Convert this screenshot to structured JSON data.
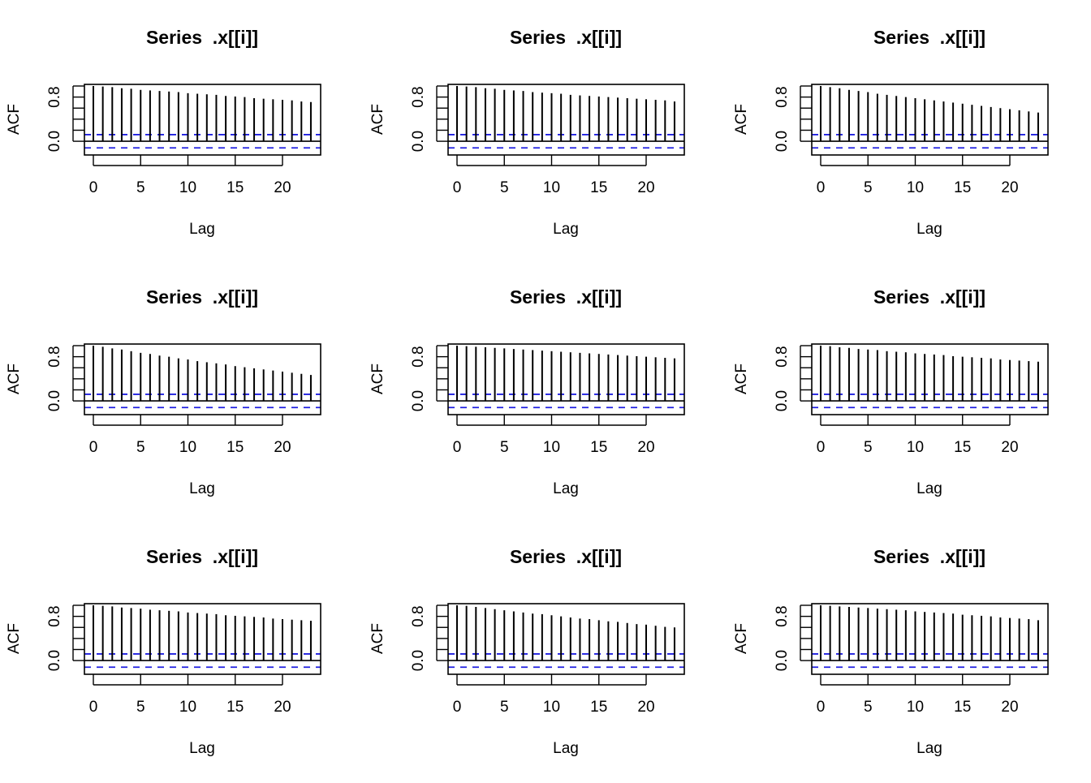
{
  "chart_data": [
    {
      "type": "bar",
      "title": "Series  .x[[i]]",
      "xlabel": "Lag",
      "ylabel": "ACF",
      "x": [
        0,
        1,
        2,
        3,
        4,
        5,
        6,
        7,
        8,
        9,
        10,
        11,
        12,
        13,
        14,
        15,
        16,
        17,
        18,
        19,
        20,
        21,
        22,
        23
      ],
      "values": [
        1.0,
        0.99,
        0.98,
        0.96,
        0.95,
        0.93,
        0.92,
        0.91,
        0.9,
        0.89,
        0.87,
        0.86,
        0.85,
        0.84,
        0.82,
        0.81,
        0.8,
        0.78,
        0.77,
        0.76,
        0.75,
        0.74,
        0.72,
        0.71
      ],
      "conf_limit": 0.12,
      "ylim": [
        -0.16,
        1.0
      ],
      "x_ticks": [
        "0",
        "5",
        "10",
        "15",
        "20"
      ],
      "y_ticks": [
        "0.0",
        "0.8"
      ],
      "grid": false
    },
    {
      "type": "bar",
      "title": "Series  .x[[i]]",
      "xlabel": "Lag",
      "ylabel": "ACF",
      "x": [
        0,
        1,
        2,
        3,
        4,
        5,
        6,
        7,
        8,
        9,
        10,
        11,
        12,
        13,
        14,
        15,
        16,
        17,
        18,
        19,
        20,
        21,
        22,
        23
      ],
      "values": [
        1.0,
        0.99,
        0.98,
        0.96,
        0.95,
        0.93,
        0.92,
        0.91,
        0.89,
        0.88,
        0.87,
        0.86,
        0.84,
        0.83,
        0.82,
        0.81,
        0.8,
        0.79,
        0.78,
        0.77,
        0.76,
        0.75,
        0.74,
        0.72
      ],
      "conf_limit": 0.12,
      "ylim": [
        -0.16,
        1.0
      ],
      "x_ticks": [
        "0",
        "5",
        "10",
        "15",
        "20"
      ],
      "y_ticks": [
        "0.0",
        "0.8"
      ],
      "grid": false
    },
    {
      "type": "bar",
      "title": "Series  .x[[i]]",
      "xlabel": "Lag",
      "ylabel": "ACF",
      "x": [
        0,
        1,
        2,
        3,
        4,
        5,
        6,
        7,
        8,
        9,
        10,
        11,
        12,
        13,
        14,
        15,
        16,
        17,
        18,
        19,
        20,
        21,
        22,
        23
      ],
      "values": [
        1.0,
        0.98,
        0.96,
        0.93,
        0.91,
        0.89,
        0.86,
        0.84,
        0.82,
        0.8,
        0.78,
        0.76,
        0.74,
        0.72,
        0.7,
        0.68,
        0.66,
        0.64,
        0.62,
        0.6,
        0.58,
        0.56,
        0.54,
        0.52
      ],
      "conf_limit": 0.12,
      "ylim": [
        -0.16,
        1.0
      ],
      "x_ticks": [
        "0",
        "5",
        "10",
        "15",
        "20"
      ],
      "y_ticks": [
        "0.0",
        "0.8"
      ],
      "grid": false
    },
    {
      "type": "bar",
      "title": "Series  .x[[i]]",
      "xlabel": "Lag",
      "ylabel": "ACF",
      "x": [
        0,
        1,
        2,
        3,
        4,
        5,
        6,
        7,
        8,
        9,
        10,
        11,
        12,
        13,
        14,
        15,
        16,
        17,
        18,
        19,
        20,
        21,
        22,
        23
      ],
      "values": [
        1.0,
        0.98,
        0.95,
        0.93,
        0.9,
        0.87,
        0.85,
        0.82,
        0.8,
        0.77,
        0.75,
        0.72,
        0.7,
        0.68,
        0.66,
        0.63,
        0.61,
        0.59,
        0.57,
        0.55,
        0.53,
        0.51,
        0.49,
        0.47
      ],
      "conf_limit": 0.12,
      "ylim": [
        -0.16,
        1.0
      ],
      "x_ticks": [
        "0",
        "5",
        "10",
        "15",
        "20"
      ],
      "y_ticks": [
        "0.0",
        "0.8"
      ],
      "grid": false
    },
    {
      "type": "bar",
      "title": "Series  .x[[i]]",
      "xlabel": "Lag",
      "ylabel": "ACF",
      "x": [
        0,
        1,
        2,
        3,
        4,
        5,
        6,
        7,
        8,
        9,
        10,
        11,
        12,
        13,
        14,
        15,
        16,
        17,
        18,
        19,
        20,
        21,
        22,
        23
      ],
      "values": [
        1.0,
        0.99,
        0.98,
        0.97,
        0.96,
        0.95,
        0.94,
        0.93,
        0.92,
        0.91,
        0.9,
        0.89,
        0.88,
        0.87,
        0.86,
        0.85,
        0.84,
        0.83,
        0.82,
        0.81,
        0.8,
        0.79,
        0.78,
        0.77
      ],
      "conf_limit": 0.12,
      "ylim": [
        -0.16,
        1.0
      ],
      "x_ticks": [
        "0",
        "5",
        "10",
        "15",
        "20"
      ],
      "y_ticks": [
        "0.0",
        "0.8"
      ],
      "grid": false
    },
    {
      "type": "bar",
      "title": "Series  .x[[i]]",
      "xlabel": "Lag",
      "ylabel": "ACF",
      "x": [
        0,
        1,
        2,
        3,
        4,
        5,
        6,
        7,
        8,
        9,
        10,
        11,
        12,
        13,
        14,
        15,
        16,
        17,
        18,
        19,
        20,
        21,
        22,
        23
      ],
      "values": [
        1.0,
        0.99,
        0.97,
        0.96,
        0.94,
        0.93,
        0.92,
        0.9,
        0.89,
        0.88,
        0.86,
        0.85,
        0.84,
        0.83,
        0.81,
        0.8,
        0.79,
        0.78,
        0.77,
        0.75,
        0.74,
        0.73,
        0.72,
        0.71
      ],
      "conf_limit": 0.12,
      "ylim": [
        -0.16,
        1.0
      ],
      "x_ticks": [
        "0",
        "5",
        "10",
        "15",
        "20"
      ],
      "y_ticks": [
        "0.0",
        "0.8"
      ],
      "grid": false
    },
    {
      "type": "bar",
      "title": "Series  .x[[i]]",
      "xlabel": "Lag",
      "ylabel": "ACF",
      "x": [
        0,
        1,
        2,
        3,
        4,
        5,
        6,
        7,
        8,
        9,
        10,
        11,
        12,
        13,
        14,
        15,
        16,
        17,
        18,
        19,
        20,
        21,
        22,
        23
      ],
      "values": [
        1.0,
        0.99,
        0.98,
        0.96,
        0.95,
        0.94,
        0.92,
        0.91,
        0.9,
        0.89,
        0.87,
        0.86,
        0.85,
        0.84,
        0.82,
        0.81,
        0.8,
        0.79,
        0.78,
        0.76,
        0.75,
        0.74,
        0.73,
        0.72
      ],
      "conf_limit": 0.12,
      "ylim": [
        -0.16,
        1.0
      ],
      "x_ticks": [
        "0",
        "5",
        "10",
        "15",
        "20"
      ],
      "y_ticks": [
        "0.0",
        "0.8"
      ],
      "grid": false
    },
    {
      "type": "bar",
      "title": "Series  .x[[i]]",
      "xlabel": "Lag",
      "ylabel": "ACF",
      "x": [
        0,
        1,
        2,
        3,
        4,
        5,
        6,
        7,
        8,
        9,
        10,
        11,
        12,
        13,
        14,
        15,
        16,
        17,
        18,
        19,
        20,
        21,
        22,
        23
      ],
      "values": [
        1.0,
        0.99,
        0.97,
        0.95,
        0.93,
        0.91,
        0.89,
        0.87,
        0.85,
        0.84,
        0.82,
        0.8,
        0.78,
        0.76,
        0.75,
        0.73,
        0.71,
        0.7,
        0.68,
        0.66,
        0.65,
        0.63,
        0.61,
        0.6
      ],
      "conf_limit": 0.12,
      "ylim": [
        -0.16,
        1.0
      ],
      "x_ticks": [
        "0",
        "5",
        "10",
        "15",
        "20"
      ],
      "y_ticks": [
        "0.0",
        "0.8"
      ],
      "grid": false
    },
    {
      "type": "bar",
      "title": "Series  .x[[i]]",
      "xlabel": "Lag",
      "ylabel": "ACF",
      "x": [
        0,
        1,
        2,
        3,
        4,
        5,
        6,
        7,
        8,
        9,
        10,
        11,
        12,
        13,
        14,
        15,
        16,
        17,
        18,
        19,
        20,
        21,
        22,
        23
      ],
      "values": [
        1.0,
        0.99,
        0.98,
        0.97,
        0.96,
        0.95,
        0.94,
        0.93,
        0.92,
        0.91,
        0.89,
        0.88,
        0.87,
        0.86,
        0.85,
        0.83,
        0.82,
        0.81,
        0.8,
        0.78,
        0.77,
        0.76,
        0.75,
        0.73
      ],
      "conf_limit": 0.12,
      "ylim": [
        -0.16,
        1.0
      ],
      "x_ticks": [
        "0",
        "5",
        "10",
        "15",
        "20"
      ],
      "y_ticks": [
        "0.0",
        "0.8"
      ],
      "grid": false
    }
  ],
  "colors": {
    "spike": "#000000",
    "conf_band": "#1f1fe0",
    "frame": "#000000"
  }
}
